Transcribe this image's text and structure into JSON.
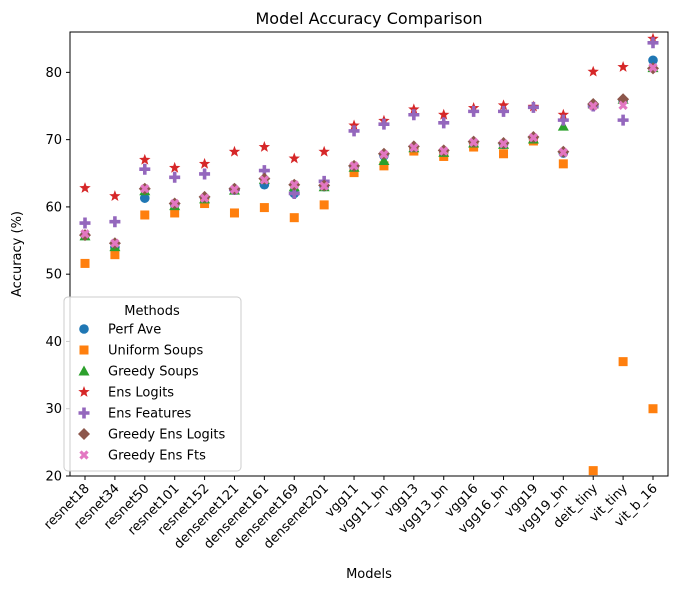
{
  "chart_data": {
    "type": "scatter",
    "title": "Model Accuracy Comparison",
    "xlabel": "Models",
    "ylabel": "Accuracy (%)",
    "ylim": [
      20,
      86
    ],
    "yticks": [
      20,
      30,
      40,
      50,
      60,
      70,
      80
    ],
    "grid": false,
    "legend_title": "Methods",
    "legend_position": "lower-left",
    "categories": [
      "resnet18",
      "resnet34",
      "resnet50",
      "resnet101",
      "resnet152",
      "densenet121",
      "densenet161",
      "densenet169",
      "densenet201",
      "vgg11",
      "vgg11_bn",
      "vgg13",
      "vgg13_bn",
      "vgg16",
      "vgg16_bn",
      "vgg19",
      "vgg19_bn",
      "deit_tiny",
      "vit_tiny",
      "vit_b_16"
    ],
    "series": [
      {
        "name": "Perf Ave",
        "marker": "circle",
        "color": "#1f77b4",
        "values": [
          55.8,
          54.0,
          61.3,
          60.3,
          61.3,
          62.5,
          63.3,
          62.0,
          63.0,
          65.8,
          67.6,
          68.6,
          68.1,
          69.4,
          69.3,
          70.2,
          68.0,
          75.2,
          75.8,
          81.8
        ]
      },
      {
        "name": "Uniform Soups",
        "marker": "square",
        "color": "#ff7f0e",
        "values": [
          51.6,
          52.9,
          58.8,
          59.1,
          60.5,
          59.1,
          59.9,
          58.4,
          60.3,
          65.1,
          66.1,
          68.3,
          67.5,
          68.9,
          67.9,
          69.8,
          66.4,
          20.8,
          37.0,
          30.0
        ]
      },
      {
        "name": "Greedy Soups",
        "marker": "triangle",
        "color": "#2ca02c",
        "values": [
          55.7,
          54.1,
          62.4,
          60.2,
          61.2,
          62.5,
          64.1,
          63.0,
          63.0,
          65.9,
          66.9,
          68.8,
          68.1,
          69.5,
          69.3,
          70.1,
          72.0,
          75.3,
          76.0,
          80.7
        ]
      },
      {
        "name": "Ens Logits",
        "marker": "star",
        "color": "#d62728",
        "values": [
          62.8,
          61.6,
          67.0,
          65.8,
          66.4,
          68.2,
          68.9,
          67.2,
          68.2,
          72.1,
          72.8,
          74.5,
          73.7,
          74.7,
          75.1,
          74.9,
          73.7,
          80.1,
          80.8,
          85.0
        ]
      },
      {
        "name": "Ens Features",
        "marker": "plus",
        "color": "#9467bd",
        "values": [
          57.6,
          57.8,
          65.6,
          64.4,
          64.9,
          62.6,
          65.4,
          62.0,
          63.8,
          71.3,
          72.3,
          73.7,
          72.5,
          74.2,
          74.2,
          74.8,
          72.9,
          75.0,
          72.9,
          84.4
        ]
      },
      {
        "name": "Greedy Ens Logits",
        "marker": "diamond",
        "color": "#8c564b",
        "values": [
          55.8,
          54.6,
          62.7,
          60.5,
          61.5,
          62.7,
          64.2,
          63.3,
          63.2,
          66.1,
          67.9,
          69.0,
          68.4,
          69.7,
          69.5,
          70.4,
          68.2,
          75.3,
          76.0,
          80.6
        ]
      },
      {
        "name": "Greedy Ens Fts",
        "marker": "x",
        "color": "#e377c2",
        "values": [
          56.0,
          54.6,
          62.7,
          60.5,
          61.3,
          62.6,
          64.0,
          63.3,
          63.1,
          66.1,
          67.8,
          68.8,
          68.3,
          69.6,
          69.4,
          70.3,
          68.1,
          75.0,
          75.1,
          80.7
        ]
      }
    ]
  }
}
